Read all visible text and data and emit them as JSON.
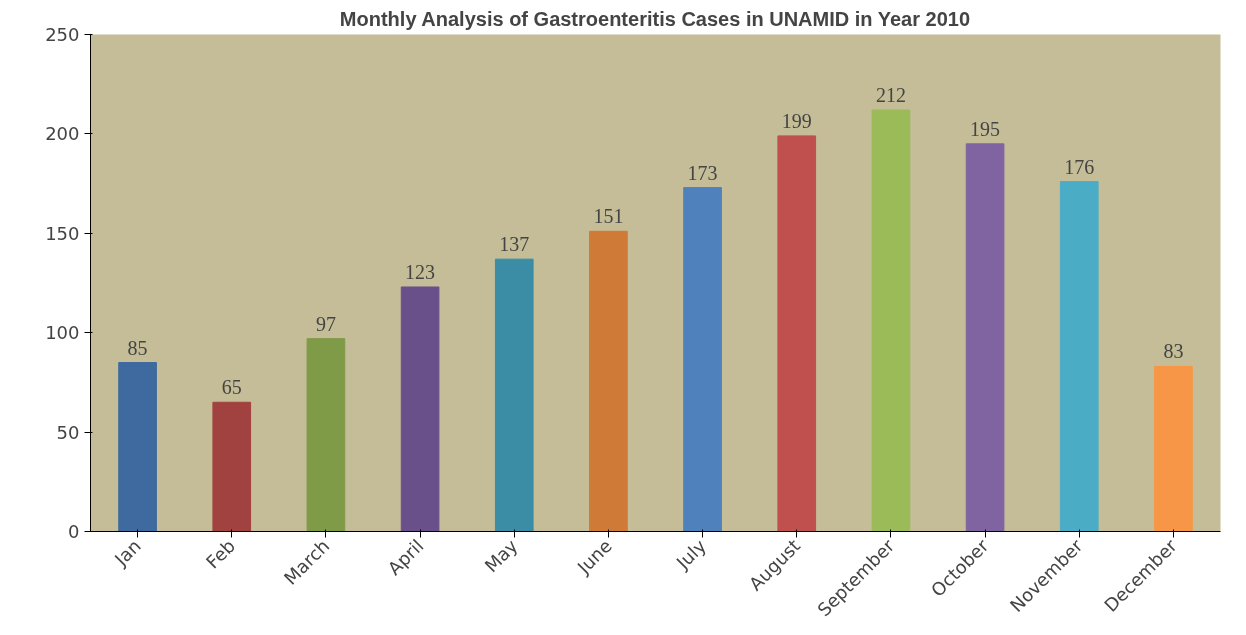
{
  "chart_data": {
    "type": "bar",
    "title": "Monthly Analysis of Gastroenteritis Cases in UNAMID in Year 2010",
    "categories": [
      "Jan",
      "Feb",
      "March",
      "April",
      "May",
      "June",
      "July",
      "August",
      "September",
      "October",
      "November",
      "December"
    ],
    "values": [
      85,
      65,
      97,
      123,
      137,
      151,
      173,
      199,
      212,
      195,
      176,
      83
    ],
    "colors": [
      "#3f6aa0",
      "#a24240",
      "#7f9b48",
      "#6a508a",
      "#3b8ca5",
      "#cf7b37",
      "#4f81bd",
      "#c0504d",
      "#9bbb59",
      "#8064a2",
      "#4bacc6",
      "#f79646"
    ],
    "ylim": [
      0,
      250
    ],
    "yticks": [
      0,
      50,
      100,
      150,
      200,
      250
    ],
    "grid": false,
    "data_labels": true
  }
}
